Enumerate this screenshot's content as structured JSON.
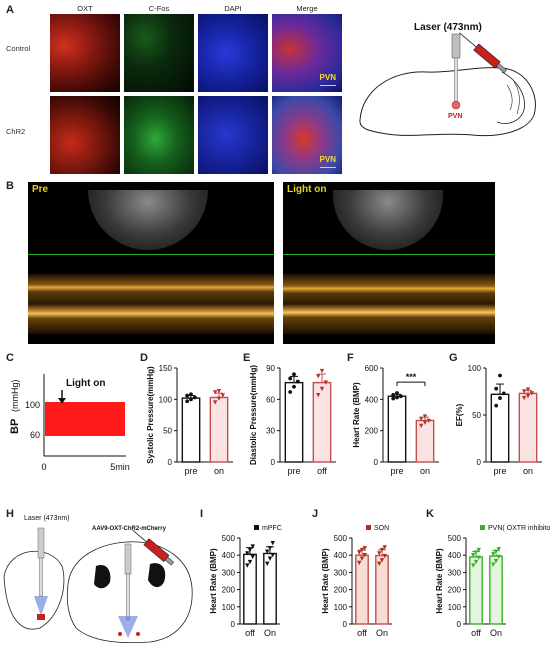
{
  "panels": {
    "A": {
      "letter": "A",
      "columns": [
        "OXT",
        "C-Fos",
        "DAPI",
        "Merge"
      ],
      "rows": [
        "Control",
        "ChR2"
      ],
      "region_label": "PVN",
      "schematic_label": "Laser (473nm)",
      "schematic_region": "PVN",
      "colors": {
        "oxt": "#c0221a",
        "cfos": "#1f9a2a",
        "dapi": "#2233cc",
        "merge": "#7a2a9a"
      }
    },
    "B": {
      "letter": "B",
      "left_label": "Pre",
      "right_label": "Light on",
      "label_color": "#e8d21a"
    },
    "C": {
      "letter": "C",
      "ylabel": "BP",
      "yunit": "(mmHg)",
      "annotation": "Light on",
      "xtick_start": "0",
      "xtick_end": "5min",
      "yticks": [
        "100",
        "60"
      ],
      "trace_color": "#ff1a1a"
    },
    "D": {
      "letter": "D"
    },
    "E": {
      "letter": "E"
    },
    "F": {
      "letter": "F",
      "significance": "***"
    },
    "G": {
      "letter": "G"
    },
    "H": {
      "letter": "H",
      "laser_label": "Laser (473nm)",
      "virus_label": "AAV9-OXT-ChR2-mCherry"
    },
    "I": {
      "letter": "I"
    },
    "J": {
      "letter": "J"
    },
    "K": {
      "letter": "K"
    }
  },
  "chart_data": [
    {
      "id": "D",
      "type": "bar",
      "ylabel": "Systolic Pressure(mmHg)",
      "categories": [
        "pre",
        "on"
      ],
      "values": [
        102,
        103
      ],
      "ylim": [
        0,
        150
      ],
      "yticks": [
        0,
        50,
        100,
        150
      ],
      "points": [
        [
          97,
          100,
          103,
          106,
          108
        ],
        [
          95,
          101,
          106,
          111,
          113
        ]
      ],
      "bar_fill": [
        "#ffffff",
        "#fbe3e3"
      ],
      "bar_edge": [
        "#111111",
        "#c0504d"
      ]
    },
    {
      "id": "E",
      "type": "bar",
      "ylabel": "Diastolic Pressure(mmHg)",
      "categories": [
        "pre",
        "off"
      ],
      "values": [
        76,
        76
      ],
      "ylim": [
        0,
        90
      ],
      "yticks": [
        0,
        30,
        60,
        90
      ],
      "points": [
        [
          67,
          72,
          77,
          80,
          84
        ],
        [
          64,
          70,
          76,
          82,
          87
        ]
      ],
      "bar_fill": [
        "#ffffff",
        "#fbe3e3"
      ],
      "bar_edge": [
        "#111111",
        "#c0504d"
      ]
    },
    {
      "id": "F",
      "type": "bar",
      "ylabel": "Heart Rate (BMP)",
      "categories": [
        "pre",
        "on"
      ],
      "values": [
        420,
        265
      ],
      "ylim": [
        0,
        600
      ],
      "yticks": [
        0,
        200,
        400,
        600
      ],
      "points": [
        [
          405,
          412,
          420,
          428,
          440
        ],
        [
          230,
          250,
          262,
          275,
          290
        ]
      ],
      "bar_fill": [
        "#ffffff",
        "#fbe3e3"
      ],
      "bar_edge": [
        "#111111",
        "#c0504d"
      ]
    },
    {
      "id": "G",
      "type": "bar",
      "ylabel": "EF(%)",
      "categories": [
        "pre",
        "on"
      ],
      "values": [
        72,
        73
      ],
      "ylim": [
        0,
        100
      ],
      "yticks": [
        0,
        50,
        100
      ],
      "points": [
        [
          60,
          68,
          73,
          78,
          92
        ],
        [
          68,
          70,
          73,
          75,
          77
        ]
      ],
      "bar_fill": [
        "#ffffff",
        "#fbe3e3"
      ],
      "bar_edge": [
        "#111111",
        "#c0504d"
      ]
    },
    {
      "id": "I",
      "type": "bar",
      "ylabel": "Heart Rate (BMP)",
      "categories": [
        "off",
        "On"
      ],
      "legend": "mPFC",
      "values": [
        405,
        410
      ],
      "ylim": [
        0,
        500
      ],
      "yticks": [
        0,
        100,
        200,
        300,
        400,
        500
      ],
      "points": [
        [
          340,
          360,
          390,
          410,
          430,
          450
        ],
        [
          350,
          380,
          400,
          420,
          440,
          470
        ]
      ],
      "bar_fill": [
        "#ffffff",
        "#ffffff"
      ],
      "bar_edge": [
        "#111111",
        "#111111"
      ],
      "point_color": "#111111"
    },
    {
      "id": "J",
      "type": "bar",
      "ylabel": "Heart Rate (BMP)",
      "categories": [
        "off",
        "On"
      ],
      "legend": "SON",
      "values": [
        400,
        398
      ],
      "ylim": [
        0,
        500
      ],
      "yticks": [
        0,
        100,
        200,
        300,
        400,
        500
      ],
      "points": [
        [
          355,
          380,
          400,
          415,
          430,
          440
        ],
        [
          350,
          370,
          395,
          410,
          430,
          445
        ]
      ],
      "bar_fill": [
        "#f8dcd6",
        "#f8dcd6"
      ],
      "bar_edge": [
        "#c0504d",
        "#c0504d"
      ],
      "point_color": "#b22c1e"
    },
    {
      "id": "K",
      "type": "bar",
      "ylabel": "Heart Rate (BMP)",
      "categories": [
        "off",
        "On"
      ],
      "legend": "PVN( OXTR inhibitor)",
      "values": [
        390,
        395
      ],
      "ylim": [
        0,
        500
      ],
      "yticks": [
        0,
        100,
        200,
        300,
        400,
        500
      ],
      "points": [
        [
          340,
          360,
          385,
          400,
          415,
          430
        ],
        [
          345,
          365,
          390,
          405,
          420,
          435
        ]
      ],
      "bar_fill": [
        "#e3f5dc",
        "#e3f5dc"
      ],
      "bar_edge": [
        "#3ab02a",
        "#3ab02a"
      ],
      "point_color": "#3ab02a"
    }
  ]
}
